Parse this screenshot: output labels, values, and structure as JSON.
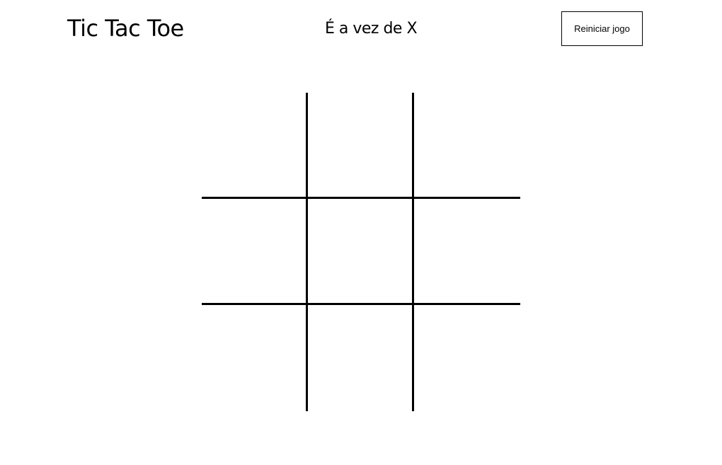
{
  "header": {
    "title": "Tic Tac Toe",
    "status": "É a vez de X",
    "reset_label": "Reiniciar jogo"
  },
  "board": {
    "cells": [
      "",
      "",
      "",
      "",
      "",
      "",
      "",
      "",
      ""
    ]
  }
}
